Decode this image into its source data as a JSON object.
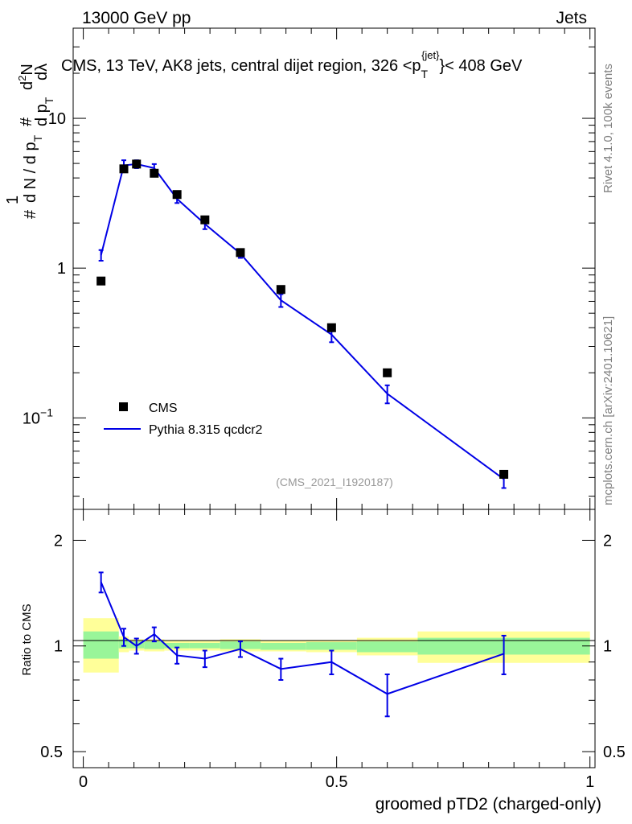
{
  "header": {
    "left": "13000 GeV pp",
    "right": "Jets"
  },
  "side_labels": {
    "rivet": "Rivet 4.1.0,  100k events",
    "mcplots": "mcplots.cern.ch [arXiv:2401.10621]"
  },
  "chart_data": {
    "type": "line",
    "title": "CMS, 13 TeV, AK8 jets, central dijet region, 326 <p",
    "title_sub": "T",
    "title_sup": "{jet}",
    "title_tail": "}< 408 GeV",
    "analysis_id": "(CMS_2021_I1920187)",
    "ylabel_main": {
      "hash1": "#",
      "one": "1",
      "dn": "d N / d p",
      "t1": "T",
      "hash2": "#",
      "dp": "d p",
      "t2": "T",
      "d2n": "d",
      "two": "2",
      "n": "N",
      "dl": "dλ"
    },
    "ylabel_ratio": "Ratio to CMS",
    "xlabel": "groomed pTD2 (charged-only)",
    "xlim": [
      -0.02,
      1.01
    ],
    "ylim_main": [
      0.0245,
      40
    ],
    "ylim_ratio": [
      0.45,
      2.45
    ],
    "yscale": "log",
    "x_ticks": [
      "0",
      "0.5",
      "1"
    ],
    "x_tick_values": [
      0,
      0.5,
      1
    ],
    "y_ticks_main": [
      {
        "value": 10,
        "label": "10",
        "sup": ""
      },
      {
        "value": 1,
        "label": "1",
        "sup": ""
      },
      {
        "value": 0.1,
        "label": "10",
        "sup": "−1"
      }
    ],
    "y_ticks_ratio": [
      {
        "value": 2,
        "label": "2"
      },
      {
        "value": 1,
        "label": "1"
      },
      {
        "value": 0.5,
        "label": "0.5"
      }
    ],
    "legend": {
      "position": "bottom-left",
      "entries": [
        "CMS",
        "Pythia 8.315 qcdcr2"
      ]
    },
    "series": [
      {
        "name": "CMS",
        "style": "markers",
        "color": "#000000",
        "x": [
          0.035,
          0.08,
          0.105,
          0.14,
          0.185,
          0.24,
          0.31,
          0.39,
          0.49,
          0.6,
          0.83
        ],
        "values": [
          0.82,
          4.6,
          4.95,
          4.3,
          3.1,
          2.1,
          1.27,
          0.72,
          0.4,
          0.2,
          0.042
        ]
      },
      {
        "name": "Pythia 8.315 qcdcr2",
        "style": "line",
        "color": "#0000e6",
        "x": [
          0.035,
          0.08,
          0.105,
          0.14,
          0.185,
          0.24,
          0.31,
          0.39,
          0.49,
          0.6,
          0.83
        ],
        "values": [
          1.22,
          4.85,
          4.95,
          4.65,
          2.9,
          1.97,
          1.25,
          0.61,
          0.36,
          0.145,
          0.039
        ],
        "errors": [
          0.1,
          0.4,
          0.3,
          0.3,
          0.18,
          0.15,
          0.08,
          0.06,
          0.04,
          0.02,
          0.005
        ]
      }
    ],
    "ratio": {
      "x": [
        0.035,
        0.08,
        0.105,
        0.14,
        0.185,
        0.24,
        0.31,
        0.39,
        0.49,
        0.6,
        0.83
      ],
      "values": [
        1.52,
        1.06,
        1.0,
        1.08,
        0.94,
        0.92,
        0.98,
        0.86,
        0.9,
        0.73,
        0.95
      ],
      "errors": [
        0.1,
        0.06,
        0.05,
        0.05,
        0.05,
        0.05,
        0.05,
        0.06,
        0.07,
        0.1,
        0.12
      ],
      "bins": [
        {
          "lo": 0.0,
          "hi": 0.07,
          "inner": [
            0.92,
            1.1
          ],
          "outer": [
            0.84,
            1.2
          ]
        },
        {
          "lo": 0.07,
          "hi": 0.09,
          "inner": [
            0.985,
            1.045
          ],
          "outer": [
            0.96,
            1.065
          ]
        },
        {
          "lo": 0.09,
          "hi": 0.12,
          "inner": [
            0.985,
            1.03
          ],
          "outer": [
            0.97,
            1.045
          ]
        },
        {
          "lo": 0.12,
          "hi": 0.16,
          "inner": [
            0.98,
            1.03
          ],
          "outer": [
            0.965,
            1.045
          ]
        },
        {
          "lo": 0.16,
          "hi": 0.21,
          "inner": [
            0.985,
            1.02
          ],
          "outer": [
            0.97,
            1.035
          ]
        },
        {
          "lo": 0.21,
          "hi": 0.27,
          "inner": [
            0.985,
            1.02
          ],
          "outer": [
            0.97,
            1.035
          ]
        },
        {
          "lo": 0.27,
          "hi": 0.35,
          "inner": [
            0.98,
            1.03
          ],
          "outer": [
            0.965,
            1.045
          ]
        },
        {
          "lo": 0.35,
          "hi": 0.44,
          "inner": [
            0.975,
            1.02
          ],
          "outer": [
            0.965,
            1.035
          ]
        },
        {
          "lo": 0.44,
          "hi": 0.54,
          "inner": [
            0.975,
            1.025
          ],
          "outer": [
            0.96,
            1.04
          ]
        },
        {
          "lo": 0.54,
          "hi": 0.66,
          "inner": [
            0.96,
            1.03
          ],
          "outer": [
            0.94,
            1.055
          ]
        },
        {
          "lo": 0.66,
          "hi": 1.0,
          "inner": [
            0.945,
            1.055
          ],
          "outer": [
            0.895,
            1.1
          ]
        }
      ]
    }
  }
}
